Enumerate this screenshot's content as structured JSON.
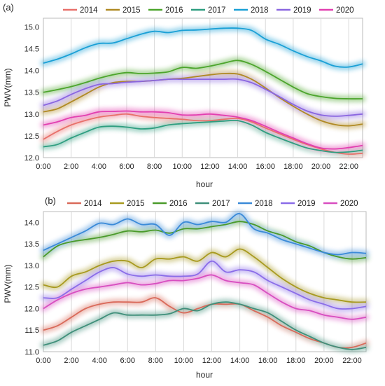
{
  "chart_data": [
    {
      "type": "line",
      "panel_label": "(a)",
      "xlabel": "hour",
      "ylabel": "PWV(mm)",
      "ylim": [
        12.0,
        15.2
      ],
      "xlim": [
        0,
        23
      ],
      "y_ticks": [
        "12.0",
        "12.5",
        "13.0",
        "13.5",
        "14.0",
        "14.5",
        "15.0"
      ],
      "y_tick_values": [
        12.0,
        12.5,
        13.0,
        13.5,
        14.0,
        14.5,
        15.0
      ],
      "x_ticks": [
        "0:00",
        "2:00",
        "4:00",
        "6:00",
        "8:00",
        "10:00",
        "12:00",
        "14:00",
        "16:00",
        "18:00",
        "20:00",
        "22:00"
      ],
      "x_tick_values": [
        0,
        2,
        4,
        6,
        8,
        10,
        12,
        14,
        16,
        18,
        20,
        22
      ],
      "grid": "vertical",
      "legend_position": "top",
      "x": [
        0,
        1,
        2,
        3,
        4,
        5,
        6,
        7,
        8,
        9,
        10,
        11,
        12,
        13,
        14,
        15,
        16,
        17,
        18,
        19,
        20,
        21,
        22,
        23
      ],
      "series": [
        {
          "name": "2014",
          "color": "#e8706a",
          "values": [
            12.42,
            12.6,
            12.75,
            12.85,
            12.93,
            12.97,
            13.0,
            12.95,
            12.92,
            12.9,
            12.88,
            12.85,
            12.85,
            12.88,
            12.9,
            12.82,
            12.68,
            12.55,
            12.42,
            12.3,
            12.2,
            12.12,
            12.08,
            12.1
          ]
        },
        {
          "name": "2015",
          "color": "#b08a24",
          "values": [
            13.05,
            13.12,
            13.28,
            13.45,
            13.62,
            13.72,
            13.75,
            13.75,
            13.77,
            13.8,
            13.82,
            13.86,
            13.9,
            13.93,
            13.92,
            13.8,
            13.6,
            13.38,
            13.18,
            13.0,
            12.85,
            12.76,
            12.73,
            12.77
          ]
        },
        {
          "name": "2016",
          "color": "#4ca52c",
          "values": [
            13.5,
            13.56,
            13.63,
            13.72,
            13.82,
            13.9,
            13.95,
            13.93,
            13.94,
            13.97,
            14.07,
            14.05,
            14.1,
            14.17,
            14.23,
            14.14,
            13.98,
            13.8,
            13.62,
            13.47,
            13.4,
            13.36,
            13.35,
            13.35
          ]
        },
        {
          "name": "2017",
          "color": "#2e9e80",
          "values": [
            12.25,
            12.3,
            12.45,
            12.58,
            12.7,
            12.72,
            12.7,
            12.66,
            12.68,
            12.75,
            12.78,
            12.8,
            12.82,
            12.84,
            12.85,
            12.75,
            12.58,
            12.45,
            12.33,
            12.22,
            12.16,
            12.12,
            12.13,
            12.17
          ]
        },
        {
          "name": "2018",
          "color": "#1aa0d6",
          "values": [
            14.17,
            14.26,
            14.38,
            14.52,
            14.62,
            14.63,
            14.73,
            14.83,
            14.9,
            14.87,
            14.92,
            14.93,
            14.95,
            14.97,
            14.97,
            14.92,
            14.72,
            14.6,
            14.45,
            14.32,
            14.22,
            14.1,
            14.08,
            14.15
          ]
        },
        {
          "name": "2019",
          "color": "#8a66e0",
          "values": [
            13.2,
            13.3,
            13.45,
            13.58,
            13.68,
            13.7,
            13.73,
            13.75,
            13.77,
            13.8,
            13.8,
            13.8,
            13.8,
            13.8,
            13.8,
            13.72,
            13.57,
            13.4,
            13.22,
            13.07,
            12.98,
            12.95,
            12.97,
            13.0
          ]
        },
        {
          "name": "2020",
          "color": "#e23fb0",
          "values": [
            12.75,
            12.82,
            12.92,
            12.97,
            13.05,
            13.06,
            13.07,
            13.05,
            13.05,
            13.03,
            12.98,
            12.98,
            13.0,
            12.97,
            12.93,
            12.85,
            12.72,
            12.58,
            12.45,
            12.32,
            12.22,
            12.2,
            12.23,
            12.28
          ]
        }
      ]
    },
    {
      "type": "line",
      "panel_label": "(b)",
      "xlabel": "hour",
      "ylabel": "PWV(mm)",
      "ylim": [
        11.0,
        14.25
      ],
      "xlim": [
        0,
        23
      ],
      "y_ticks": [
        "11.0",
        "11.5",
        "12.0",
        "12.5",
        "13.0",
        "13.5",
        "14.0"
      ],
      "y_tick_values": [
        11.0,
        11.5,
        12.0,
        12.5,
        13.0,
        13.5,
        14.0
      ],
      "x_ticks": [
        "0:00",
        "2:00",
        "4:00",
        "6:00",
        "8:00",
        "10:00",
        "12:00",
        "14:00",
        "16:00",
        "18:00",
        "20:00",
        "22:00"
      ],
      "x_tick_values": [
        0,
        2,
        4,
        6,
        8,
        10,
        12,
        14,
        16,
        18,
        20,
        22
      ],
      "grid": "vertical",
      "legend_position": "top",
      "x": [
        0,
        1,
        2,
        3,
        4,
        5,
        6,
        7,
        8,
        9,
        10,
        11,
        12,
        13,
        14,
        15,
        16,
        17,
        18,
        19,
        20,
        21,
        22,
        23
      ],
      "series": [
        {
          "name": "2014",
          "color": "#d96a5a",
          "values": [
            11.5,
            11.6,
            11.8,
            12.0,
            12.1,
            12.15,
            12.15,
            12.15,
            12.25,
            12.05,
            11.9,
            12.0,
            12.1,
            12.1,
            12.1,
            11.95,
            11.8,
            11.6,
            11.45,
            11.3,
            11.2,
            11.1,
            11.1,
            11.2
          ]
        },
        {
          "name": "2015",
          "color": "#a89a20",
          "values": [
            12.55,
            12.5,
            12.75,
            12.85,
            13.0,
            13.1,
            13.1,
            12.95,
            13.15,
            13.15,
            13.2,
            13.1,
            13.3,
            13.2,
            13.38,
            13.2,
            12.95,
            12.7,
            12.5,
            12.35,
            12.25,
            12.2,
            12.15,
            12.15
          ]
        },
        {
          "name": "2016",
          "color": "#4a9a2a",
          "values": [
            13.2,
            13.45,
            13.55,
            13.6,
            13.65,
            13.72,
            13.8,
            13.78,
            13.82,
            13.75,
            13.85,
            13.85,
            13.9,
            13.95,
            14.02,
            13.95,
            13.8,
            13.7,
            13.55,
            13.45,
            13.3,
            13.2,
            13.15,
            13.18
          ]
        },
        {
          "name": "2017",
          "color": "#3f8f7a",
          "values": [
            11.15,
            11.25,
            11.45,
            11.6,
            11.75,
            11.9,
            11.85,
            11.85,
            11.85,
            11.88,
            12.0,
            11.95,
            12.1,
            12.15,
            12.1,
            12.0,
            11.9,
            11.7,
            11.5,
            11.35,
            11.2,
            11.1,
            11.05,
            11.1
          ]
        },
        {
          "name": "2018",
          "color": "#3a8ad8",
          "values": [
            13.35,
            13.5,
            13.65,
            13.8,
            13.98,
            13.95,
            14.08,
            13.95,
            13.95,
            13.7,
            14.0,
            13.95,
            14.02,
            14.0,
            14.2,
            13.85,
            13.75,
            13.6,
            13.5,
            13.4,
            13.3,
            13.25,
            13.3,
            13.28
          ]
        },
        {
          "name": "2019",
          "color": "#8a6ce8",
          "values": [
            12.25,
            12.25,
            12.45,
            12.65,
            12.85,
            12.95,
            12.8,
            12.75,
            12.78,
            12.75,
            12.75,
            12.8,
            13.1,
            12.85,
            12.9,
            12.85,
            12.65,
            12.5,
            12.35,
            12.2,
            12.1,
            12.0,
            12.0,
            12.05
          ]
        },
        {
          "name": "2020",
          "color": "#d84ec0",
          "values": [
            12.0,
            12.2,
            12.35,
            12.45,
            12.5,
            12.55,
            12.6,
            12.55,
            12.58,
            12.65,
            12.65,
            12.7,
            12.78,
            12.65,
            12.6,
            12.55,
            12.35,
            12.15,
            12.0,
            11.95,
            11.85,
            11.8,
            11.75,
            11.8
          ]
        }
      ]
    }
  ]
}
